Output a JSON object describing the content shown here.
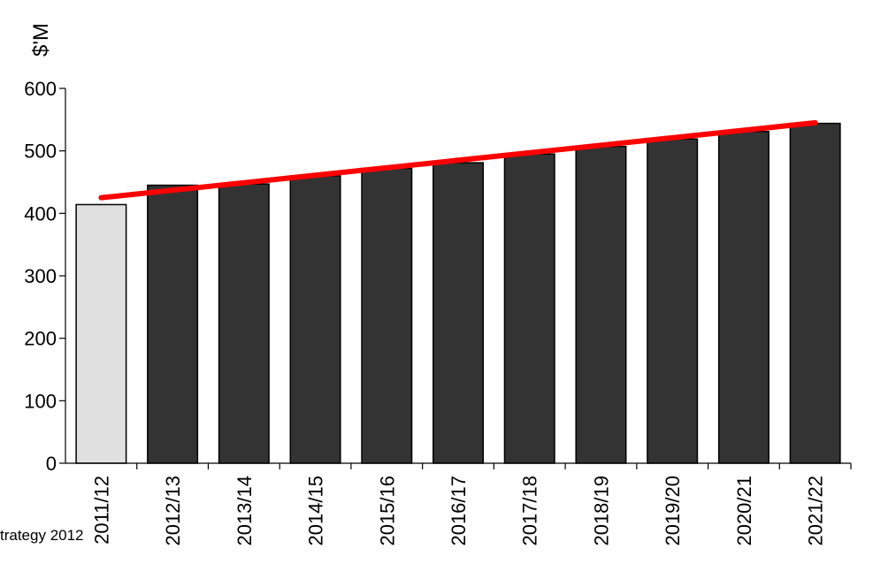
{
  "chart_data": {
    "type": "bar",
    "title": "",
    "xlabel": "",
    "ylabel": "$'M",
    "ylim": [
      0,
      600
    ],
    "yticks": [
      0,
      100,
      200,
      300,
      400,
      500,
      600
    ],
    "categories": [
      "2011/12",
      "2012/13",
      "2013/14",
      "2014/15",
      "2015/16",
      "2016/17",
      "2017/18",
      "2018/19",
      "2019/20",
      "2020/21",
      "2021/22"
    ],
    "values": [
      414,
      445,
      447,
      460,
      472,
      481,
      495,
      507,
      519,
      531,
      544
    ],
    "bar_colors": [
      "#e0e0e0",
      "#333333",
      "#333333",
      "#333333",
      "#333333",
      "#333333",
      "#333333",
      "#333333",
      "#333333",
      "#333333",
      "#333333"
    ],
    "bar_outline": "#000000",
    "trend_line": {
      "color": "#ff0000",
      "start": 425,
      "end": 545
    },
    "grid": false,
    "legend": "none"
  },
  "footnote": "trategy 2012"
}
